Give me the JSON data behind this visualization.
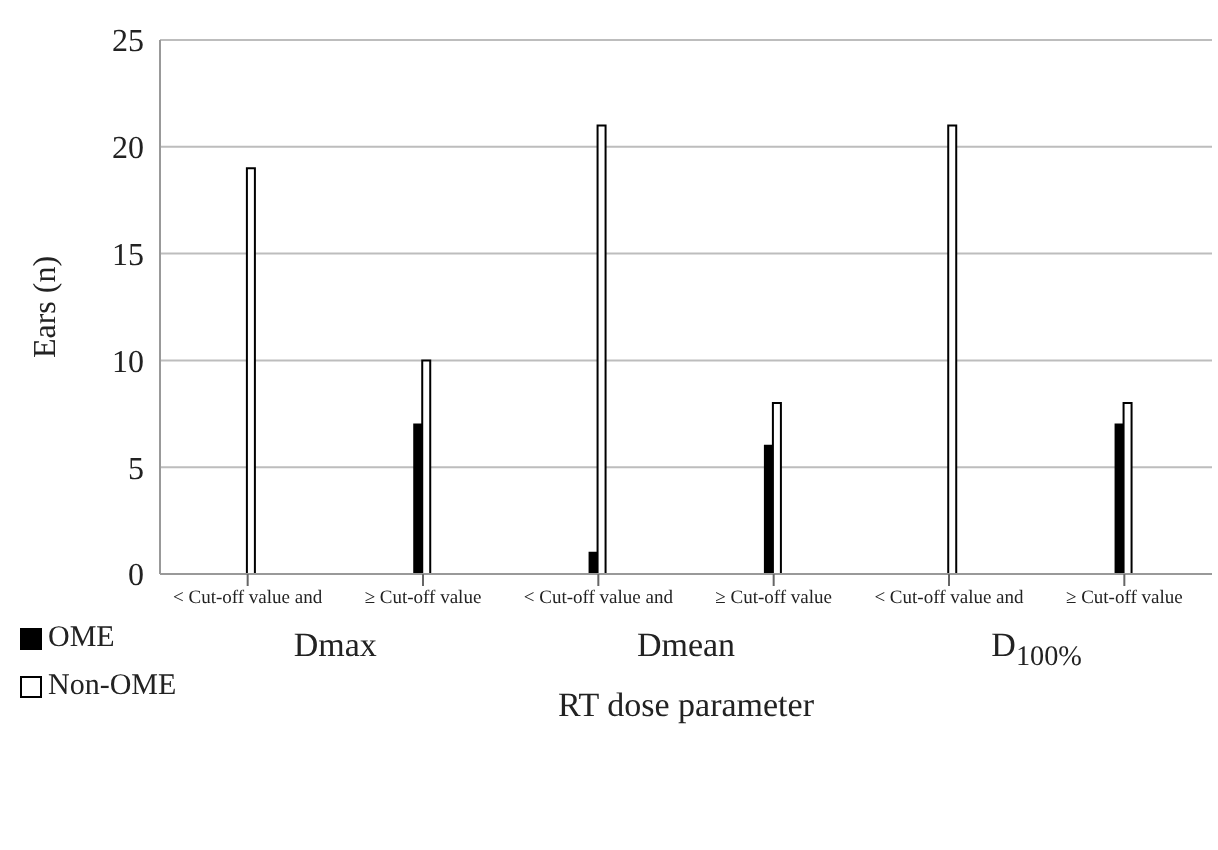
{
  "chart_data": {
    "type": "bar",
    "ylabel": "Ears (n)",
    "xlabel": "RT dose parameter",
    "categories": [
      "< Cut-off value and",
      "≥ Cut-off value",
      "< Cut-off value and",
      "≥ Cut-off value",
      "< Cut-off value and",
      "≥ Cut-off value"
    ],
    "annotations": [
      "Dmax",
      "Dmean",
      "D$_{100%}$"
    ],
    "series": [
      {
        "name": "OME",
        "color": "#000000",
        "values": [
          0,
          7,
          1,
          6,
          0,
          7
        ]
      },
      {
        "name": "Non-OME",
        "color": "#ffffff",
        "values": [
          19,
          10,
          21,
          8,
          21,
          8
        ]
      }
    ],
    "ylim": [
      0,
      25
    ],
    "yticks": [
      0,
      5,
      10,
      15,
      20,
      25
    ],
    "grid": "y",
    "legend": "bottom left"
  }
}
